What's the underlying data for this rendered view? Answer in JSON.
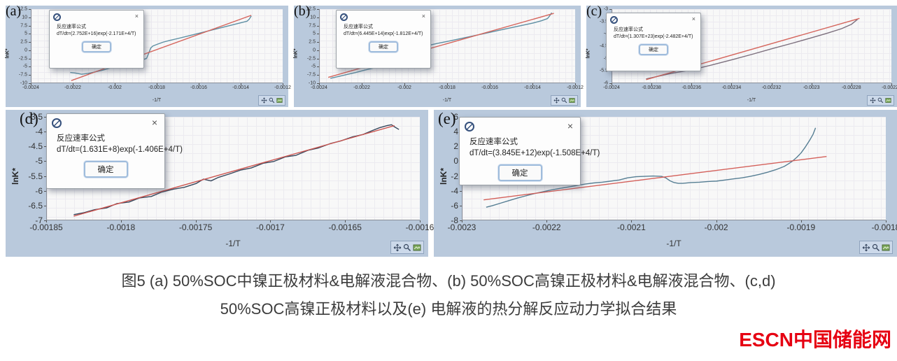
{
  "caption": {
    "line1": "图5 (a) 50%SOC中镍正极材料&电解液混合物、(b) 50%SOC高镍正极材料&电解液混合物、(c,d)",
    "line2": "50%SOC高镍正极材料以及(e) 电解液的热分解反应动力学拟合结果"
  },
  "logo": {
    "text": "ESCN中国储能网",
    "color": "#e60012"
  },
  "dialog": {
    "title": "反应速率公式",
    "ok_label": "确定",
    "close_glyph": "×",
    "icon_name": "app-icon"
  },
  "toolbar": {
    "icon_names": [
      "move-icon",
      "zoom-icon",
      "image-icon"
    ]
  },
  "panels": [
    {
      "label": "(a)",
      "formula": "dT/dt=(2.752E+16)exp(-2.171E+4/T)"
    },
    {
      "label": "(b)",
      "formula": "dT/dt=(6.445E+14)exp(-1.812E+4/T)"
    },
    {
      "label": "(c)",
      "formula": "dT/dt=(1.307E+23)exp(-2.482E+4/T)"
    },
    {
      "label": "(d)",
      "formula": "dT/dt=(1.631E+8)exp(-1.406E+4/T)"
    },
    {
      "label": "(e)",
      "formula": "dT/dt=(3.845E+12)exp(-1.508E+4/T)"
    }
  ],
  "colors": {
    "window_bg": "#b9c9dc",
    "plot_bg": "#f8f8f8",
    "data_line": "#5e8fa3",
    "fit_line": "#d5655c"
  },
  "chart_data": [
    {
      "id": "a",
      "type": "line",
      "xlabel": "-1/T",
      "ylabel": "lnK*",
      "xlim": [
        -0.0024,
        -0.0012
      ],
      "ylim": [
        -10,
        12.5
      ],
      "grid": true,
      "xtick_values": [
        -0.0024,
        -0.0022,
        -0.002,
        -0.0018,
        -0.0016,
        -0.0014,
        -0.0012
      ],
      "xtick_labels": [
        "-0.0024",
        "-0.0022",
        "-0.002",
        "-0.0018",
        "-0.0016",
        "-0.0014",
        "-0.0012"
      ],
      "ytick_values": [
        12.5,
        10,
        7.5,
        5,
        2.5,
        0,
        -2.5,
        -5,
        -7.5,
        -10
      ],
      "ytick_labels": [
        "12.5",
        "10",
        "7.5",
        "5",
        "2.5",
        "0",
        "-2.5",
        "-5",
        "-7.5",
        "-10"
      ],
      "series": [
        {
          "name": "measured",
          "color": "#5e8fa3",
          "points": [
            [
              -0.002215,
              -6.9
            ],
            [
              -0.00219,
              -7.1
            ],
            [
              -0.00216,
              -7.45
            ],
            [
              -0.00213,
              -7.2
            ],
            [
              -0.0021,
              -6.8
            ],
            [
              -0.00206,
              -6.2
            ],
            [
              -0.00202,
              -5.5
            ],
            [
              -0.00198,
              -4.85
            ],
            [
              -0.00194,
              -4.2
            ],
            [
              -0.0019,
              -3.6
            ],
            [
              -0.00187,
              -3.05
            ],
            [
              -0.00185,
              -2.6
            ],
            [
              -0.00184,
              -1.0
            ],
            [
              -0.00183,
              0.6
            ],
            [
              -0.00182,
              1.2
            ],
            [
              -0.0018,
              1.7
            ],
            [
              -0.00177,
              2.4
            ],
            [
              -0.00174,
              2.9
            ],
            [
              -0.0017,
              3.5
            ],
            [
              -0.00165,
              4.3
            ],
            [
              -0.0016,
              5.1
            ],
            [
              -0.00155,
              5.9
            ],
            [
              -0.0015,
              6.7
            ],
            [
              -0.00145,
              7.5
            ],
            [
              -0.0014,
              8.3
            ],
            [
              -0.00137,
              8.8
            ],
            [
              -0.00136,
              9.4
            ],
            [
              -0.00135,
              10.4
            ]
          ]
        },
        {
          "name": "fit",
          "color": "#d5655c",
          "points": [
            [
              -0.00221,
              -9.4
            ],
            [
              -0.00135,
              10.6
            ]
          ]
        }
      ]
    },
    {
      "id": "b",
      "type": "line",
      "xlabel": "-1/T",
      "ylabel": "lnK*",
      "xlim": [
        -0.0024,
        -0.0012
      ],
      "ylim": [
        -10,
        12.5
      ],
      "grid": true,
      "xtick_values": [
        -0.0024,
        -0.0022,
        -0.002,
        -0.0018,
        -0.0016,
        -0.0014,
        -0.0012
      ],
      "xtick_labels": [
        "-0.0024",
        "-0.0022",
        "-0.002",
        "-0.0018",
        "-0.0016",
        "-0.0014",
        "-0.0012"
      ],
      "ytick_values": [
        12.5,
        10,
        7.5,
        5,
        2.5,
        0,
        -2.5,
        -5,
        -7.5,
        -10
      ],
      "ytick_labels": [
        "12.5",
        "10",
        "7.5",
        "5",
        "2.5",
        "0",
        "-2.5",
        "-5",
        "-7.5",
        "-10"
      ],
      "series": [
        {
          "name": "measured",
          "color": "#5e8fa3",
          "points": [
            [
              -0.00235,
              -8.7
            ],
            [
              -0.00231,
              -8.1
            ],
            [
              -0.00227,
              -7.5
            ],
            [
              -0.00223,
              -6.9
            ],
            [
              -0.00219,
              -6.2
            ],
            [
              -0.00215,
              -5.6
            ],
            [
              -0.00211,
              -5.0
            ],
            [
              -0.00207,
              -4.4
            ],
            [
              -0.00203,
              -3.7
            ],
            [
              -0.00199,
              -3.0
            ],
            [
              -0.00196,
              -2.4
            ],
            [
              -0.00193,
              -1.7
            ],
            [
              -0.00192,
              -0.4
            ],
            [
              -0.0019,
              0.9
            ],
            [
              -0.00188,
              1.5
            ],
            [
              -0.00185,
              1.95
            ],
            [
              -0.0018,
              2.6
            ],
            [
              -0.00175,
              3.3
            ],
            [
              -0.0017,
              4.0
            ],
            [
              -0.00165,
              4.7
            ],
            [
              -0.0016,
              5.4
            ],
            [
              -0.00155,
              6.1
            ],
            [
              -0.0015,
              6.8
            ],
            [
              -0.00145,
              7.5
            ],
            [
              -0.0014,
              8.2
            ],
            [
              -0.00136,
              8.9
            ],
            [
              -0.00133,
              9.6
            ],
            [
              -0.00132,
              10.4
            ],
            [
              -0.00131,
              11.4
            ]
          ]
        },
        {
          "name": "fit",
          "color": "#d5655c",
          "points": [
            [
              -0.00236,
              -8.4
            ],
            [
              -0.0013,
              11.2
            ]
          ]
        }
      ]
    },
    {
      "id": "c",
      "type": "line",
      "xlabel": "-1/T",
      "ylabel": "lnK*",
      "xlim": [
        -0.0024,
        -0.00226
      ],
      "ylim": [
        -6,
        -3
      ],
      "grid": true,
      "xtick_values": [
        -0.0024,
        -0.00238,
        -0.00236,
        -0.00234,
        -0.00232,
        -0.0023,
        -0.00228,
        -0.00226
      ],
      "xtick_labels": [
        "-0.0024",
        "-0.00238",
        "-0.00236",
        "-0.00234",
        "-0.00232",
        "-0.0023",
        "-0.00228",
        "-0.00226"
      ],
      "ytick_values": [
        -3,
        -3.5,
        -4,
        -4.5,
        -5,
        -5.5,
        -6
      ],
      "ytick_labels": [
        "-3",
        "-3.5",
        "-4",
        "-4.5",
        "-5",
        "-5.5",
        "-6"
      ],
      "series": [
        {
          "name": "measured",
          "color": "#7c6f7d",
          "points": [
            [
              -0.002383,
              -5.85
            ],
            [
              -0.00237,
              -5.62
            ],
            [
              -0.00236,
              -5.48
            ],
            [
              -0.00235,
              -5.28
            ],
            [
              -0.00234,
              -5.07
            ],
            [
              -0.00233,
              -4.85
            ],
            [
              -0.00232,
              -4.62
            ],
            [
              -0.00231,
              -4.4
            ],
            [
              -0.0023,
              -4.17
            ],
            [
              -0.002292,
              -3.98
            ],
            [
              -0.002285,
              -3.8
            ],
            [
              -0.00228,
              -3.62
            ],
            [
              -0.002277,
              -3.42
            ]
          ]
        },
        {
          "name": "fit",
          "color": "#d5655c",
          "points": [
            [
              -0.002383,
              -5.88
            ],
            [
              -0.002276,
              -3.38
            ]
          ]
        }
      ]
    },
    {
      "id": "d",
      "type": "line",
      "xlabel": "-1/T",
      "ylabel": "lnK*",
      "xlim": [
        -0.00185,
        -0.0016
      ],
      "ylim": [
        -7,
        -3.5
      ],
      "grid": true,
      "xtick_values": [
        -0.00185,
        -0.0018,
        -0.00175,
        -0.0017,
        -0.00165,
        -0.0016
      ],
      "xtick_labels": [
        "-0.00185",
        "-0.0018",
        "-0.00175",
        "-0.0017",
        "-0.00165",
        "-0.0016"
      ],
      "ytick_values": [
        -3.5,
        -4,
        -4.5,
        -5,
        -5.5,
        -6,
        -6.5,
        -7
      ],
      "ytick_labels": [
        "-3.5",
        "-4",
        "-4.5",
        "-5",
        "-5.5",
        "-6",
        "-6.5",
        "-7"
      ],
      "series": [
        {
          "name": "measured",
          "color": "#36475c",
          "points": [
            [
              -0.001832,
              -6.83
            ],
            [
              -0.001825,
              -6.76
            ],
            [
              -0.001818,
              -6.66
            ],
            [
              -0.00181,
              -6.6
            ],
            [
              -0.001803,
              -6.45
            ],
            [
              -0.001795,
              -6.4
            ],
            [
              -0.001788,
              -6.26
            ],
            [
              -0.00178,
              -6.21
            ],
            [
              -0.001773,
              -6.06
            ],
            [
              -0.001765,
              -5.96
            ],
            [
              -0.001758,
              -5.9
            ],
            [
              -0.00175,
              -5.77
            ],
            [
              -0.001745,
              -5.62
            ],
            [
              -0.00174,
              -5.68
            ],
            [
              -0.001735,
              -5.56
            ],
            [
              -0.001728,
              -5.45
            ],
            [
              -0.00172,
              -5.31
            ],
            [
              -0.001713,
              -5.24
            ],
            [
              -0.001705,
              -5.08
            ],
            [
              -0.001698,
              -5.02
            ],
            [
              -0.00169,
              -4.86
            ],
            [
              -0.001683,
              -4.81
            ],
            [
              -0.001675,
              -4.64
            ],
            [
              -0.001668,
              -4.56
            ],
            [
              -0.00166,
              -4.41
            ],
            [
              -0.001653,
              -4.32
            ],
            [
              -0.001645,
              -4.18
            ],
            [
              -0.001638,
              -4.1
            ],
            [
              -0.001632,
              -3.97
            ],
            [
              -0.001627,
              -3.87
            ],
            [
              -0.001622,
              -3.8
            ],
            [
              -0.001619,
              -3.77
            ],
            [
              -0.001617,
              -3.84
            ],
            [
              -0.001614,
              -3.93
            ]
          ]
        },
        {
          "name": "fit",
          "color": "#cc5550",
          "points": [
            [
              -0.001832,
              -6.88
            ],
            [
              -0.001617,
              -3.8
            ]
          ]
        }
      ]
    },
    {
      "id": "e",
      "type": "line",
      "xlabel": "-1/T",
      "ylabel": "lnK*",
      "xlim": [
        -0.0023,
        -0.0018
      ],
      "ylim": [
        -8,
        6
      ],
      "grid": true,
      "xtick_values": [
        -0.0023,
        -0.0022,
        -0.0021,
        -0.002,
        -0.0019,
        -0.0018
      ],
      "xtick_labels": [
        "-0.0023",
        "-0.0022",
        "-0.0021",
        "-0.002",
        "-0.0019",
        "-0.0018"
      ],
      "ytick_values": [
        6,
        4,
        2,
        0,
        -2,
        -4,
        -6,
        -8
      ],
      "ytick_labels": [
        "6",
        "4",
        "2",
        "0",
        "-2",
        "-4",
        "-6",
        "-8"
      ],
      "series": [
        {
          "name": "measured",
          "color": "#567e93",
          "points": [
            [
              -0.002272,
              -6.3
            ],
            [
              -0.002265,
              -6.1
            ],
            [
              -0.002255,
              -5.75
            ],
            [
              -0.002245,
              -5.4
            ],
            [
              -0.002235,
              -5.05
            ],
            [
              -0.002225,
              -4.75
            ],
            [
              -0.002215,
              -4.45
            ],
            [
              -0.002205,
              -4.2
            ],
            [
              -0.002195,
              -3.95
            ],
            [
              -0.002185,
              -3.75
            ],
            [
              -0.002175,
              -3.55
            ],
            [
              -0.002165,
              -3.35
            ],
            [
              -0.002155,
              -3.15
            ],
            [
              -0.002145,
              -3.0
            ],
            [
              -0.002135,
              -2.9
            ],
            [
              -0.002125,
              -2.75
            ],
            [
              -0.002115,
              -2.6
            ],
            [
              -0.002105,
              -2.3
            ],
            [
              -0.002095,
              -2.15
            ],
            [
              -0.002085,
              -2.1
            ],
            [
              -0.002075,
              -2.05
            ],
            [
              -0.002065,
              -2.1
            ],
            [
              -0.00206,
              -2.3
            ],
            [
              -0.002055,
              -2.7
            ],
            [
              -0.00205,
              -2.95
            ],
            [
              -0.002045,
              -3.05
            ],
            [
              -0.00204,
              -3.05
            ],
            [
              -0.00203,
              -2.95
            ],
            [
              -0.00202,
              -2.9
            ],
            [
              -0.00201,
              -2.8
            ],
            [
              -0.002,
              -2.75
            ],
            [
              -0.00199,
              -2.6
            ],
            [
              -0.00198,
              -2.45
            ],
            [
              -0.00197,
              -2.3
            ],
            [
              -0.00196,
              -2.1
            ],
            [
              -0.00195,
              -1.85
            ],
            [
              -0.00194,
              -1.55
            ],
            [
              -0.00193,
              -1.2
            ],
            [
              -0.00192,
              -0.75
            ],
            [
              -0.001915,
              -0.4
            ],
            [
              -0.00191,
              0.0
            ],
            [
              -0.001905,
              0.5
            ],
            [
              -0.0019,
              1.1
            ],
            [
              -0.001895,
              1.9
            ],
            [
              -0.00189,
              2.8
            ],
            [
              -0.001886,
              3.6
            ],
            [
              -0.001883,
              4.5
            ]
          ]
        },
        {
          "name": "fit",
          "color": "#d4605a",
          "points": [
            [
              -0.002275,
              -5.3
            ],
            [
              -0.00187,
              0.6
            ]
          ]
        }
      ]
    }
  ]
}
